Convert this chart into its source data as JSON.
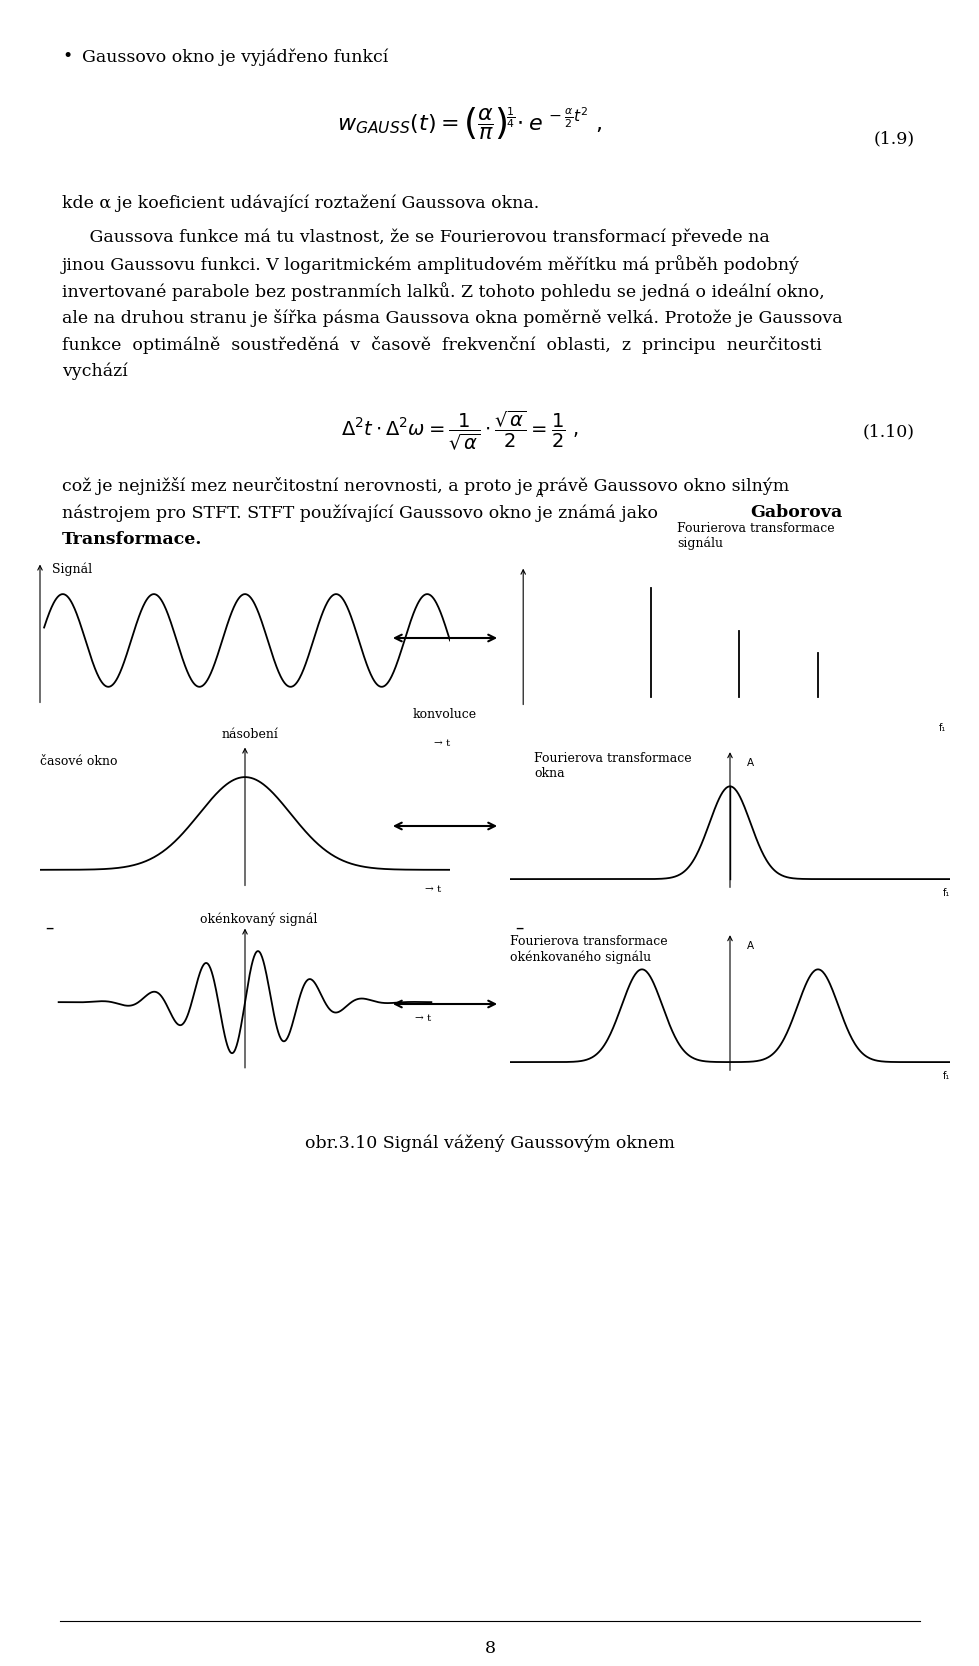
{
  "page_width": 9.6,
  "page_height": 16.33,
  "bg_color": "#ffffff",
  "text_color": "#000000",
  "bullet_text": "Gaussovo okno je vyjádřeno funkcí",
  "eq_num_1": "(1.9)",
  "text_kde": "kde α je koeficient udávající roztažení Gaussova okna.",
  "para_lines": [
    "     Gaussova funkce má tu vlastnost, že se Fourierovou transformací převede na",
    "jinou Gaussovu funkci. V logaritmickém amplitudovém měřítku má průběh podobný",
    "invertované parabole bez postranmích lalků. Z tohoto pohledu se jedná o ideální okno,",
    "ale na druhou stranu je šířka pásma Gaussova okna poměrně velká. Protože je Gaussova",
    "funkce  optimálně  soustředěná  v  časově  frekvenční  oblasti,  z  principu  neurčitosti",
    "vychází"
  ],
  "eq_num_2": "(1.10)",
  "concl_line1": "což je nejnižší mez neurčitostní nerovnosti, a proto je právě Gaussovo okno silným",
  "concl_line2": "nástrojem pro STFT. STFT používající Gaussovo okno je známá jako ",
  "concl_bold1": "Gaborova",
  "concl_line3_bold": "Transformace.",
  "label_signal": "Signál",
  "label_fourier_sig": "Fourierova transformace\nsignálu",
  "label_nasobeni": "násobení",
  "label_casove_okno": "časové okno",
  "label_fourier_okno": "Fourierova transformace\nokna",
  "label_konvoluce": "konvoluce",
  "label_okenko_sig": "okénkovaný signál",
  "label_fourier_okenko": "Fourierova transformace\nokénkovaného signálu",
  "caption": "obr.3.10 Signál vážený Gaussovým oknem",
  "page_num": "8"
}
